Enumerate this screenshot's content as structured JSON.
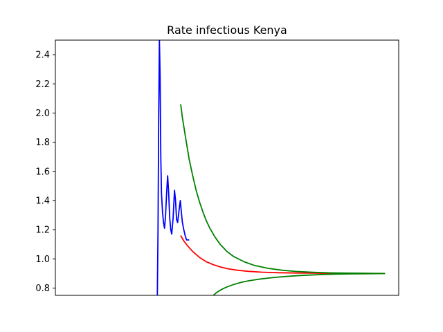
{
  "chart_data": {
    "type": "line",
    "title": "Rate infectious Kenya",
    "xlabel": "",
    "ylabel": "",
    "grid": false,
    "legend": "none",
    "x_ticks_shown": false,
    "xlim": [
      0,
      100
    ],
    "ylim": [
      0.75,
      2.5
    ],
    "y_ticks": [
      0.8,
      1.0,
      1.2,
      1.4,
      1.6,
      1.8,
      2.0,
      2.2,
      2.4
    ],
    "y_tick_labels": [
      "0.8",
      "1.0",
      "1.2",
      "1.4",
      "1.6",
      "1.8",
      "2.0",
      "2.2",
      "2.4"
    ],
    "series": [
      {
        "color": "#0000ff",
        "x": [
          29.7,
          29.9,
          30.1,
          30.3,
          30.5,
          30.7,
          30.9,
          31.2,
          31.5,
          31.8,
          32.1,
          32.4,
          32.7,
          33.0,
          33.3,
          33.6,
          33.9,
          34.3,
          34.7,
          35.0,
          35.3,
          35.6,
          36.0,
          36.4,
          36.7,
          37.0,
          37.4,
          37.8,
          38.2,
          38.6,
          39.0
        ],
        "values": [
          0.75,
          1.2,
          2.0,
          2.5,
          2.25,
          1.7,
          1.45,
          1.32,
          1.25,
          1.21,
          1.3,
          1.45,
          1.57,
          1.45,
          1.28,
          1.2,
          1.17,
          1.28,
          1.47,
          1.4,
          1.27,
          1.25,
          1.33,
          1.4,
          1.32,
          1.25,
          1.2,
          1.16,
          1.13,
          1.13,
          1.13
        ]
      },
      {
        "color": "#ff0000",
        "x": [
          36.5,
          37.5,
          38.5,
          40,
          42,
          44,
          46,
          48,
          50,
          53,
          56,
          60,
          65,
          70,
          75,
          80,
          85,
          90,
          96
        ],
        "values": [
          1.16,
          1.12,
          1.09,
          1.05,
          1.01,
          0.98,
          0.96,
          0.945,
          0.933,
          0.922,
          0.915,
          0.909,
          0.905,
          0.903,
          0.902,
          0.901,
          0.9005,
          0.9002,
          0.9
        ]
      },
      {
        "color": "#008000",
        "x": [
          36.5,
          37,
          38,
          39,
          40,
          41,
          42,
          43,
          44,
          45,
          46.5,
          48,
          50,
          52,
          55,
          58,
          62,
          66,
          70,
          75,
          80,
          86,
          92,
          96
        ],
        "values": [
          2.06,
          1.97,
          1.82,
          1.68,
          1.57,
          1.47,
          1.39,
          1.32,
          1.26,
          1.21,
          1.15,
          1.1,
          1.05,
          1.015,
          0.98,
          0.955,
          0.935,
          0.922,
          0.914,
          0.908,
          0.904,
          0.902,
          0.9005,
          0.9
        ]
      },
      {
        "color": "#008000",
        "x": [
          46,
          47,
          48,
          49,
          50,
          52,
          54,
          56,
          58,
          60,
          63,
          66,
          70,
          74,
          78,
          82,
          86,
          90,
          94,
          96
        ],
        "values": [
          0.75,
          0.77,
          0.785,
          0.797,
          0.808,
          0.825,
          0.838,
          0.848,
          0.856,
          0.863,
          0.871,
          0.877,
          0.884,
          0.889,
          0.893,
          0.895,
          0.897,
          0.898,
          0.899,
          0.9
        ]
      }
    ]
  }
}
